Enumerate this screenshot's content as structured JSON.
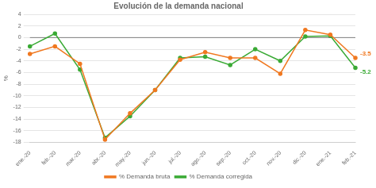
{
  "chart_data": {
    "type": "line",
    "title": "Evolución de la demanda nacional",
    "ylabel": "%",
    "categories": [
      "ene.-20",
      "feb.-20",
      "mar.-20",
      "abr.-20",
      "may.-20",
      "jun.-20",
      "jul.-20",
      "ago.-20",
      "sep.-20",
      "oct.-20",
      "nov.-20",
      "dic.-20",
      "ene.-21",
      "feb.-21"
    ],
    "series": [
      {
        "name": "% Demanda bruta",
        "color": "#f07820",
        "marker": "o",
        "values": [
          -2.8,
          -1.5,
          -4.5,
          -17.5,
          -13.0,
          -9.0,
          -3.8,
          -2.5,
          -3.5,
          -3.5,
          -6.2,
          1.3,
          0.5,
          -3.5
        ]
      },
      {
        "name": "% Demanda corregida",
        "color": "#3aaa35",
        "marker": "o",
        "values": [
          -1.5,
          0.7,
          -5.5,
          -17.2,
          -13.5,
          -9.0,
          -3.5,
          -3.3,
          -4.7,
          -2.0,
          -4.0,
          0.2,
          0.3,
          -5.2
        ]
      }
    ],
    "ylim": [
      -18,
      4
    ],
    "yticks": [
      4.0,
      2.0,
      0.0,
      -2.0,
      -4.0,
      -6.0,
      -8.0,
      -10.0,
      -12.0,
      -14.0,
      -16.0,
      -18.0
    ],
    "hlines": [
      {
        "value": 0,
        "color": "gray"
      }
    ],
    "annotations": [
      {
        "text": "-3.5",
        "x": "feb.-21",
        "y": -3.5,
        "color": "#f07820"
      },
      {
        "text": "-5.2",
        "x": "feb.-21",
        "y": -5.2,
        "color": "#3aaa35"
      }
    ],
    "grid": true,
    "legend": "bottom"
  }
}
